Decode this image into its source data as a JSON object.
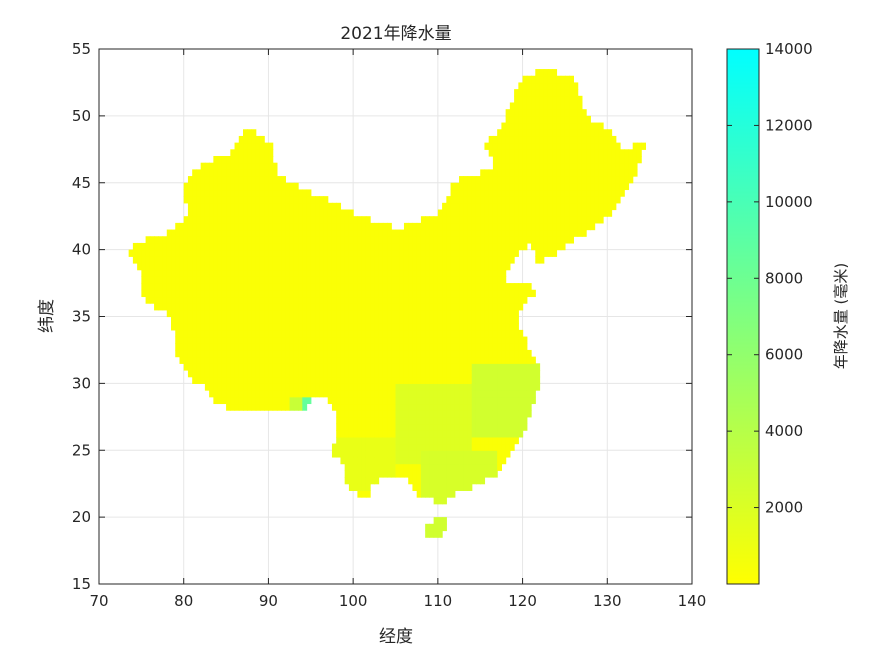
{
  "chart_data": {
    "type": "heatmap",
    "title": "2021年降水量",
    "xlabel": "经度",
    "ylabel": "纬度",
    "xlim": [
      70,
      140
    ],
    "ylim": [
      15,
      55
    ],
    "xticks": [
      "70",
      "80",
      "90",
      "100",
      "110",
      "120",
      "130",
      "140"
    ],
    "yticks": [
      "15",
      "20",
      "25",
      "30",
      "35",
      "40",
      "45",
      "50",
      "55"
    ],
    "grid": true,
    "colormap": [
      "#ffff00",
      "#00ffff"
    ],
    "colorbar": {
      "label": "年降水量 (毫米)",
      "range": [
        0,
        14000
      ],
      "ticks": [
        "2000",
        "4000",
        "6000",
        "8000",
        "10000",
        "12000",
        "14000"
      ],
      "location": "right"
    },
    "region": "China mainland and Hainan Island",
    "outline": [
      [
        73.5,
        39.5
      ],
      [
        74.5,
        40.6
      ],
      [
        78.5,
        41.3
      ],
      [
        80.3,
        42.5
      ],
      [
        80.2,
        45.0
      ],
      [
        82.3,
        46.5
      ],
      [
        85.6,
        47.3
      ],
      [
        87.4,
        49.2
      ],
      [
        90.3,
        47.8
      ],
      [
        91.0,
        45.6
      ],
      [
        95.4,
        44.2
      ],
      [
        100.5,
        42.6
      ],
      [
        105.3,
        41.6
      ],
      [
        110.0,
        42.7
      ],
      [
        112.0,
        45.1
      ],
      [
        116.7,
        46.2
      ],
      [
        115.6,
        47.9
      ],
      [
        117.8,
        49.5
      ],
      [
        119.5,
        52.5
      ],
      [
        122.0,
        53.5
      ],
      [
        123.6,
        53.4
      ],
      [
        126.0,
        52.8
      ],
      [
        127.5,
        49.9
      ],
      [
        130.6,
        48.8
      ],
      [
        132.0,
        47.5
      ],
      [
        134.7,
        48.3
      ],
      [
        133.0,
        45.0
      ],
      [
        131.0,
        43.0
      ],
      [
        129.0,
        42.0
      ],
      [
        124.3,
        39.9
      ],
      [
        121.6,
        39.0
      ],
      [
        121.0,
        40.5
      ],
      [
        118.5,
        39.1
      ],
      [
        117.8,
        38.0
      ],
      [
        119.0,
        37.3
      ],
      [
        122.6,
        37.2
      ],
      [
        120.8,
        36.3
      ],
      [
        119.3,
        35.0
      ],
      [
        120.8,
        32.3
      ],
      [
        122.0,
        31.0
      ],
      [
        121.8,
        29.5
      ],
      [
        120.5,
        27.0
      ],
      [
        119.4,
        25.5
      ],
      [
        117.5,
        23.5
      ],
      [
        114.2,
        22.3
      ],
      [
        111.5,
        21.6
      ],
      [
        110.0,
        20.8
      ],
      [
        109.0,
        21.5
      ],
      [
        107.8,
        21.6
      ],
      [
        106.7,
        22.8
      ],
      [
        105.3,
        23.2
      ],
      [
        102.0,
        22.5
      ],
      [
        101.7,
        21.3
      ],
      [
        99.5,
        22.0
      ],
      [
        98.7,
        24.0
      ],
      [
        97.6,
        24.8
      ],
      [
        98.2,
        27.5
      ],
      [
        97.5,
        28.3
      ],
      [
        96.2,
        29.2
      ],
      [
        95.2,
        29.0
      ],
      [
        94.0,
        28.0
      ],
      [
        92.0,
        27.8
      ],
      [
        91.3,
        27.9
      ],
      [
        89.5,
        27.9
      ],
      [
        88.0,
        28.0
      ],
      [
        86.0,
        27.9
      ],
      [
        84.0,
        28.5
      ],
      [
        82.0,
        30.0
      ],
      [
        81.0,
        30.3
      ],
      [
        79.5,
        31.8
      ],
      [
        78.8,
        32.5
      ],
      [
        79.2,
        33.5
      ],
      [
        78.5,
        34.5
      ],
      [
        77.8,
        35.5
      ],
      [
        76.0,
        35.9
      ],
      [
        75.0,
        37.0
      ],
      [
        74.8,
        38.4
      ],
      [
        73.5,
        39.5
      ]
    ],
    "islands": [
      [
        [
          108.6,
          19.2
        ],
        [
          109.7,
          20.1
        ],
        [
          110.6,
          20.1
        ],
        [
          111.0,
          19.6
        ],
        [
          110.5,
          18.8
        ],
        [
          109.6,
          18.2
        ],
        [
          108.7,
          18.5
        ],
        [
          108.6,
          19.2
        ]
      ]
    ],
    "wet_regions": [
      {
        "x": [
          114,
          122
        ],
        "y": [
          26,
          31.5
        ],
        "value": 2500
      },
      {
        "x": [
          105,
          114
        ],
        "y": [
          24,
          30
        ],
        "value": 1800
      },
      {
        "x": [
          108,
          117
        ],
        "y": [
          21,
          25
        ],
        "value": 2200
      },
      {
        "x": [
          108.5,
          111
        ],
        "y": [
          18.3,
          20
        ],
        "value": 2600
      },
      {
        "x": [
          94.2,
          96.0
        ],
        "y": [
          27.8,
          28.8
        ],
        "value": 8500
      },
      {
        "x": [
          92.5,
          95.5
        ],
        "y": [
          27.0,
          29.0
        ],
        "value": 3000
      },
      {
        "x": [
          97,
          105
        ],
        "y": [
          22,
          26
        ],
        "value": 1200
      }
    ],
    "baseline_value": 300
  }
}
